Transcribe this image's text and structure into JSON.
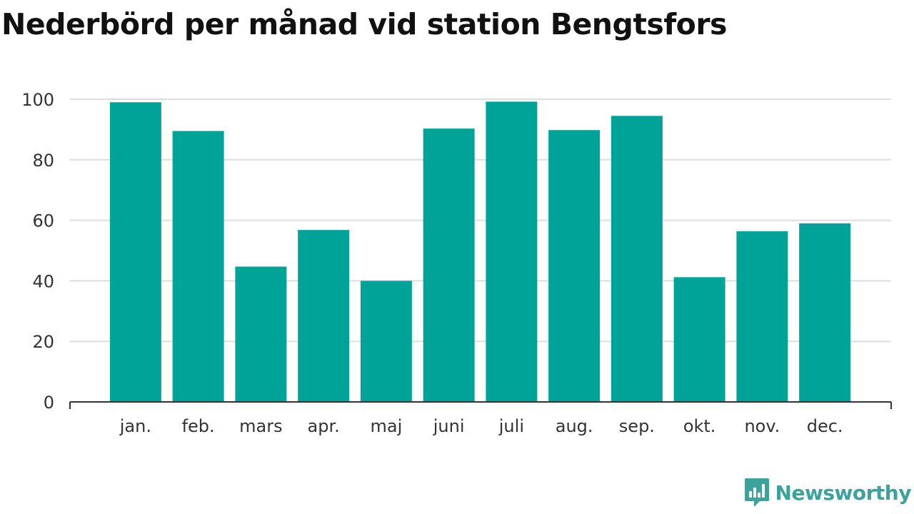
{
  "title": "Nederbörd per månad vid station Bengtsfors",
  "brand": "Newsworthy",
  "colors": {
    "bar": "#00a398",
    "grid": "#dddddd",
    "axis": "#333333",
    "brand": "#3aa39b"
  },
  "chart_data": {
    "type": "bar",
    "title": "Nederbörd per månad vid station Bengtsfors",
    "xlabel": "",
    "ylabel": "",
    "categories": [
      "jan.",
      "feb.",
      "mars",
      "apr.",
      "maj",
      "juni",
      "juli",
      "aug.",
      "sep.",
      "okt.",
      "nov.",
      "dec."
    ],
    "values": [
      99,
      89.5,
      44.7,
      56.8,
      40,
      90.3,
      99.2,
      89.8,
      94.5,
      41.2,
      56.4,
      59
    ],
    "ylim": [
      0,
      100
    ],
    "yticks": [
      0,
      20,
      40,
      60,
      80,
      100
    ],
    "grid": true,
    "legend": "none"
  }
}
